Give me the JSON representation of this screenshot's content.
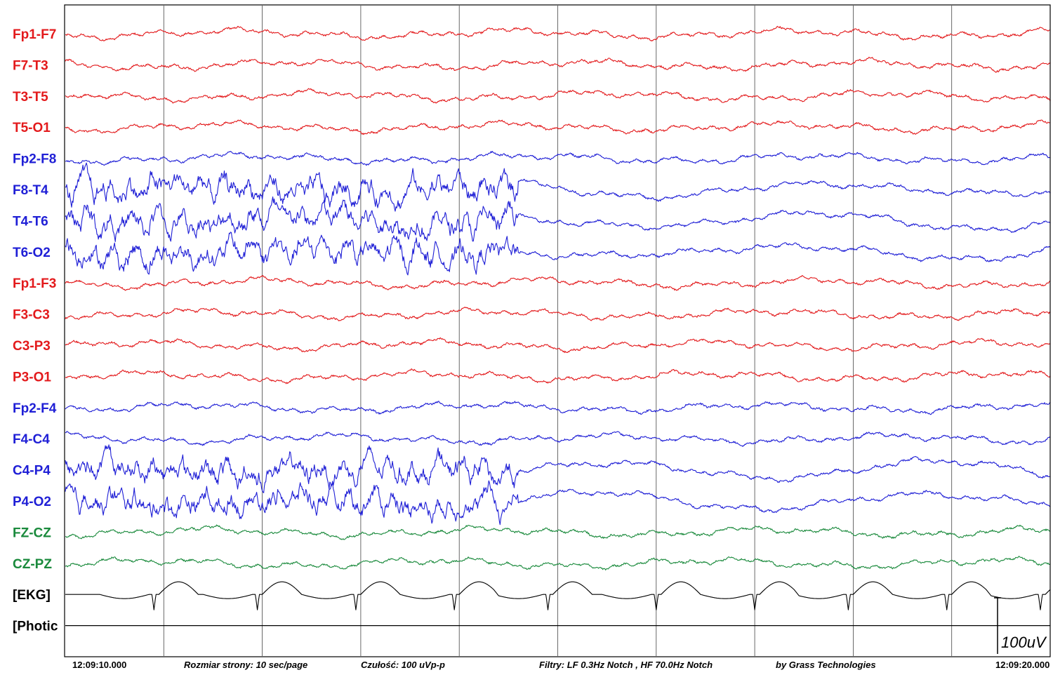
{
  "chart_data": {
    "type": "line",
    "channels": [
      {
        "name": "Fp1-F7",
        "color": "#e31a1c"
      },
      {
        "name": "F7-T3",
        "color": "#e31a1c"
      },
      {
        "name": "T3-T5",
        "color": "#e31a1c"
      },
      {
        "name": "T5-O1",
        "color": "#e31a1c"
      },
      {
        "name": "Fp2-F8",
        "color": "#1f1fd6"
      },
      {
        "name": "F8-T4",
        "color": "#1f1fd6"
      },
      {
        "name": "T4-T6",
        "color": "#1f1fd6"
      },
      {
        "name": "T6-O2",
        "color": "#1f1fd6"
      },
      {
        "name": "Fp1-F3",
        "color": "#e31a1c"
      },
      {
        "name": "F3-C3",
        "color": "#e31a1c"
      },
      {
        "name": "C3-P3",
        "color": "#e31a1c"
      },
      {
        "name": "P3-O1",
        "color": "#e31a1c"
      },
      {
        "name": "Fp2-F4",
        "color": "#1f1fd6"
      },
      {
        "name": "F4-C4",
        "color": "#1f1fd6"
      },
      {
        "name": "C4-P4",
        "color": "#1f1fd6"
      },
      {
        "name": "P4-O2",
        "color": "#1f1fd6"
      },
      {
        "name": "FZ-CZ",
        "color": "#1a8a3c"
      },
      {
        "name": "CZ-PZ",
        "color": "#1a8a3c"
      },
      {
        "name": "[EKG]",
        "color": "#000000"
      },
      {
        "name": "[Photic",
        "color": "#000000"
      }
    ],
    "x_range_sec": [
      0,
      10
    ],
    "grid_interval_sec": 1,
    "high_amplitude_interval_sec": [
      0,
      4.6
    ],
    "ekg_beats_sec": [
      0.9,
      1.95,
      2.95,
      3.95,
      4.9,
      6.0,
      7.0,
      7.95,
      8.95,
      9.9
    ],
    "scale_bar_uv": 100,
    "start_time": "12:09:10.000",
    "end_time": "12:09:20.000",
    "footer": {
      "page_size": "Rozmiar strony: 10 sec/page",
      "sensitivity": "Czułość:  100 uVp-p",
      "filters": "Filtry: LF  0.3Hz Notch , HF 70.0Hz Notch",
      "credit": "by Grass Technologies"
    },
    "scale_label": "100uV"
  }
}
